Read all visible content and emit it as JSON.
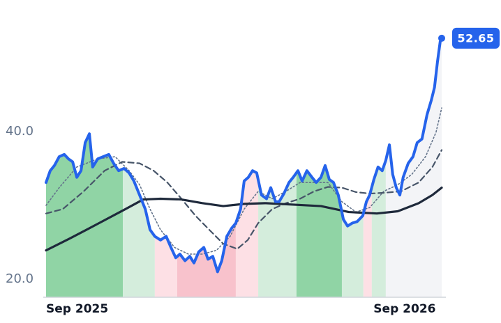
{
  "chart_data": {
    "type": "line",
    "xlim": [
      0,
      13.24
    ],
    "ylim": [
      17.55,
      57.83
    ],
    "xticks": [
      {
        "value": 0,
        "label": "Sep 2025"
      },
      {
        "value": 12,
        "label": "Sep 2026"
      }
    ],
    "yticks": [
      {
        "value": 20,
        "label": "20.0"
      },
      {
        "value": 40,
        "label": "40.0"
      }
    ],
    "grid": false,
    "bands": [
      {
        "start": 0,
        "end": 2.57,
        "color": "#90d4a5"
      },
      {
        "start": 2.57,
        "end": 3.64,
        "color": "#d4eddc"
      },
      {
        "start": 3.64,
        "end": 4.39,
        "color": "#fde0e5"
      },
      {
        "start": 4.39,
        "end": 6.35,
        "color": "#f8c2cc"
      },
      {
        "start": 6.35,
        "end": 7.1,
        "color": "#fde0e5"
      },
      {
        "start": 7.1,
        "end": 8.38,
        "color": "#d4eddc"
      },
      {
        "start": 8.38,
        "end": 9.9,
        "color": "#90d4a5"
      },
      {
        "start": 9.9,
        "end": 10.62,
        "color": "#d4eddc"
      },
      {
        "start": 10.62,
        "end": 10.9,
        "color": "#fde0e5"
      },
      {
        "start": 10.9,
        "end": 11.37,
        "color": "#d4eddc"
      },
      {
        "start": 11.37,
        "end": 13.24,
        "color": "#f3f4f7"
      }
    ],
    "series": [
      {
        "color": "#2563eb",
        "x": [
          0,
          0.14,
          0.28,
          0.44,
          0.61,
          0.75,
          0.89,
          1.03,
          1.17,
          1.31,
          1.45,
          1.56,
          1.73,
          1.91,
          2.1,
          2.26,
          2.43,
          2.61,
          2.78,
          2.94,
          3.13,
          3.32,
          3.48,
          3.64,
          3.83,
          4.02,
          4.18,
          4.34,
          4.48,
          4.65,
          4.81,
          4.95,
          5.11,
          5.28,
          5.42,
          5.58,
          5.74,
          5.88,
          6.05,
          6.21,
          6.35,
          6.51,
          6.63,
          6.77,
          6.91,
          7.05,
          7.21,
          7.38,
          7.52,
          7.68,
          7.8,
          7.96,
          8.13,
          8.27,
          8.43,
          8.57,
          8.73,
          8.9,
          9.04,
          9.2,
          9.34,
          9.48,
          9.62,
          9.78,
          9.95,
          10.09,
          10.25,
          10.41,
          10.6,
          10.72,
          10.83,
          10.97,
          11.11,
          11.25,
          11.37,
          11.49,
          11.6,
          11.72,
          11.84,
          11.95,
          12.12,
          12.28,
          12.42,
          12.58,
          12.75,
          12.89,
          13.0,
          13.1,
          13.19,
          13.24
        ],
        "values": [
          33.1,
          34.7,
          35.4,
          36.6,
          36.9,
          36.3,
          35.9,
          33.8,
          34.7,
          38.5,
          39.7,
          35.2,
          36.3,
          36.6,
          36.9,
          35.7,
          34.7,
          35.0,
          34.4,
          33.3,
          31.4,
          29.5,
          26.7,
          25.8,
          25.3,
          25.8,
          24.3,
          22.9,
          23.4,
          22.5,
          23.1,
          22.2,
          23.7,
          24.3,
          22.7,
          23.1,
          21.0,
          22.5,
          25.8,
          26.9,
          27.6,
          29.5,
          33.3,
          33.8,
          34.7,
          34.4,
          31.4,
          30.9,
          32.4,
          30.5,
          30.5,
          31.6,
          33.1,
          33.8,
          34.7,
          33.3,
          34.7,
          33.8,
          33.1,
          33.8,
          35.4,
          33.5,
          33.1,
          31.4,
          28.1,
          27.2,
          27.6,
          27.8,
          28.6,
          30.5,
          31.4,
          33.5,
          35.2,
          34.7,
          36.1,
          38.2,
          34.2,
          32.4,
          31.4,
          33.8,
          35.7,
          36.6,
          38.5,
          39.0,
          42.3,
          44.2,
          46.0,
          49.5,
          52.2,
          52.65
        ]
      },
      {
        "color": "#1e293b",
        "x": [
          0,
          0.79,
          1.73,
          2.66,
          3.25,
          3.83,
          4.53,
          5.23,
          5.93,
          6.63,
          7.33,
          8.27,
          9.2,
          10.13,
          11.07,
          11.77,
          12.47,
          12.93,
          13.24
        ],
        "values": [
          23.9,
          25.5,
          27.5,
          29.5,
          30.8,
          30.9,
          30.8,
          30.3,
          29.9,
          30.2,
          30.3,
          30.1,
          29.9,
          29.1,
          28.9,
          29.2,
          30.3,
          31.4,
          32.4
        ]
      },
      {
        "color": "#475569",
        "x": [
          0,
          0.56,
          1.26,
          1.96,
          2.55,
          3.13,
          3.6,
          4.06,
          4.53,
          5.0,
          5.46,
          5.93,
          6.4,
          6.75,
          7.1,
          7.57,
          8.03,
          8.5,
          8.97,
          9.43,
          9.9,
          10.37,
          10.83,
          11.3,
          11.88,
          12.47,
          12.93,
          13.24
        ],
        "values": [
          28.9,
          29.5,
          31.9,
          34.7,
          35.9,
          35.7,
          34.7,
          33.1,
          30.9,
          28.6,
          26.7,
          24.8,
          24.1,
          25.3,
          27.6,
          29.5,
          30.3,
          30.9,
          31.9,
          32.5,
          32.4,
          31.8,
          31.6,
          31.7,
          31.9,
          33.1,
          35.2,
          37.5
        ]
      },
      {
        "color": "#64748b",
        "x": [
          0,
          0.44,
          1.03,
          1.73,
          2.31,
          2.78,
          3.13,
          3.48,
          3.83,
          4.3,
          4.76,
          5.23,
          5.7,
          6.16,
          6.63,
          7.1,
          7.57,
          8.03,
          8.5,
          8.97,
          9.43,
          9.9,
          10.37,
          10.83,
          11.3,
          11.77,
          12.24,
          12.7,
          13.05,
          13.24
        ],
        "values": [
          30.0,
          32.4,
          35.2,
          36.3,
          36.6,
          34.7,
          32.8,
          29.5,
          26.7,
          24.3,
          23.4,
          23.4,
          23.9,
          25.8,
          29.5,
          31.9,
          30.9,
          31.9,
          33.1,
          33.1,
          33.1,
          30.5,
          29.1,
          29.7,
          31.9,
          32.8,
          34.2,
          36.6,
          39.9,
          43.2
        ]
      }
    ]
  }
}
